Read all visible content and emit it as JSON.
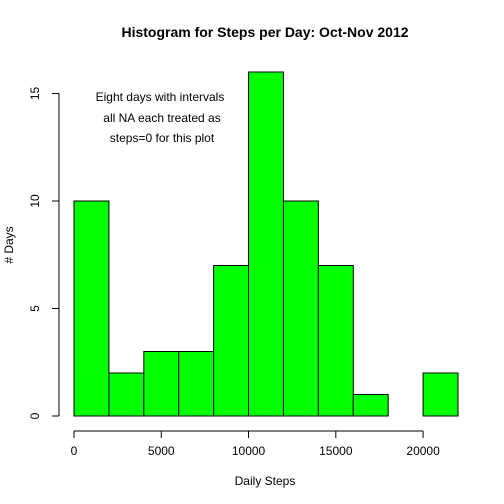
{
  "chart_data": {
    "type": "bar",
    "title": "Histogram for Steps per Day: Oct-Nov 2012",
    "xlabel": "Daily Steps",
    "ylabel": "# Days",
    "bin_edges": [
      0,
      2000,
      4000,
      6000,
      8000,
      10000,
      12000,
      14000,
      16000,
      18000,
      20000,
      22000
    ],
    "values": [
      10,
      2,
      3,
      3,
      7,
      16,
      10,
      7,
      1,
      0,
      2
    ],
    "xlim": [
      0,
      22000
    ],
    "ylim": [
      0,
      16
    ],
    "xticks": [
      0,
      5000,
      10000,
      15000,
      20000
    ],
    "yticks": [
      0,
      5,
      10,
      15
    ],
    "bar_color": "#00ff00",
    "grid": false,
    "annotation": [
      "Eight days with intervals",
      "all NA each treated as",
      "steps=0 for this plot"
    ]
  }
}
